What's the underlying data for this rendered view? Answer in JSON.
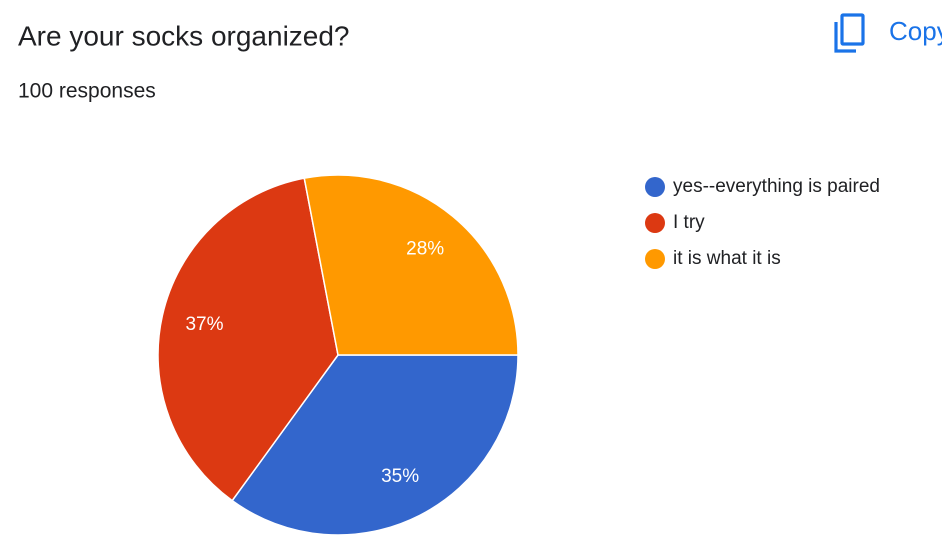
{
  "chart_data": {
    "type": "pie",
    "title": "Are your socks organized?",
    "subtitle": "100 responses",
    "button": "Copy",
    "categories": [
      "yes--everything is paired",
      "I try",
      "it is what it is"
    ],
    "values": [
      35,
      37,
      28
    ],
    "value_labels": [
      "35%",
      "37%",
      "28%"
    ],
    "colors": [
      "#3366cc",
      "#dc3912",
      "#ff9900"
    ],
    "legend": "right"
  }
}
